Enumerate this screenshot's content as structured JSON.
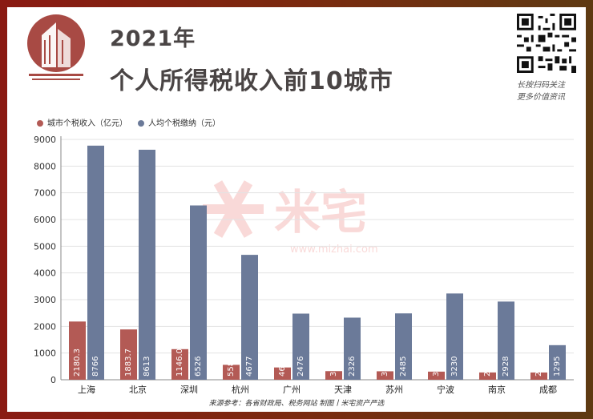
{
  "header": {
    "year_title": "2021年",
    "main_title": "个人所得税收入前10城市"
  },
  "qr": {
    "caption_line1": "长按扫码关注",
    "caption_line2": "更多价值资讯"
  },
  "watermark": {
    "brand": "米宅",
    "url": "www.mizhai.com"
  },
  "source": "来源参考：各省财政局、税务网站 制图丨米宅资产严选",
  "colors": {
    "series1": "#b35a55",
    "series2": "#6b7a99",
    "title": "#4a4545",
    "accent": "#9c3a33"
  },
  "chart_data": {
    "type": "bar",
    "categories": [
      "上海",
      "北京",
      "深圳",
      "杭州",
      "广州",
      "天津",
      "苏州",
      "宁波",
      "南京",
      "成都"
    ],
    "series": [
      {
        "name": "城市个税收入（亿元）",
        "values": [
          2180.3,
          1883.7,
          1146.0,
          558.3,
          460,
          322.5,
          316.9,
          303.8,
          272.8,
          271.1
        ],
        "labels": [
          "2180.3",
          "1883.7",
          "1146.0",
          "558.3",
          "460",
          "322.5",
          "316.9",
          "303.8",
          "272.8",
          "271.1"
        ]
      },
      {
        "name": "人均个税缴纳（元）",
        "values": [
          8766,
          8613,
          6526,
          4677,
          2476,
          2326,
          2485,
          3230,
          2928,
          1295
        ],
        "labels": [
          "8766",
          "8613",
          "6526",
          "4677",
          "2476",
          "2326",
          "2485",
          "3230",
          "2928",
          "1295"
        ]
      }
    ],
    "y_ticks": [
      "0",
      "1000",
      "2000",
      "3000",
      "4000",
      "5000",
      "6000",
      "7000",
      "8000",
      "9000"
    ],
    "ylim": [
      0,
      9000
    ],
    "grid": true,
    "legend_position": "top-left"
  }
}
